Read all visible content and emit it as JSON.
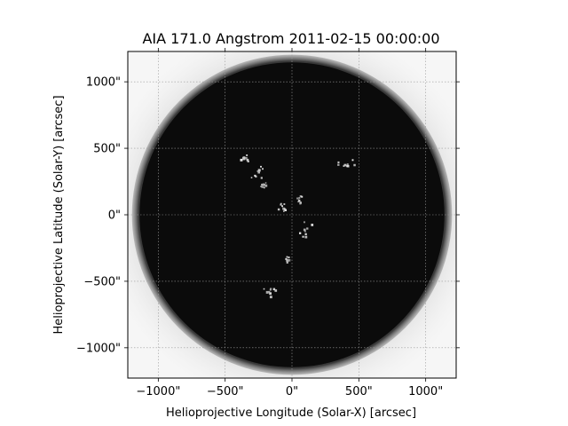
{
  "chart_data": {
    "type": "heatmap",
    "title": "AIA 171.0 Angstrom 2011-02-15 00:00:00",
    "xlabel": "Helioprojective Longitude (Solar-X) [arcsec]",
    "ylabel": "Helioprojective Latitude (Solar-Y) [arcsec]",
    "xlim": [
      -1228,
      1228
    ],
    "ylim": [
      -1228,
      1228
    ],
    "x_ticks": [
      -1000,
      -500,
      0,
      500,
      1000
    ],
    "y_ticks": [
      -1000,
      -500,
      0,
      500,
      1000
    ],
    "x_tick_labels": [
      "−1000\"",
      "−500\"",
      "0\"",
      "500\"",
      "1000\""
    ],
    "y_tick_labels": [
      "−1000\"",
      "−500\"",
      "0\"",
      "500\"",
      "1000\""
    ],
    "grid": true,
    "colormap": "gray_r",
    "solar_disk": {
      "center": [
        0,
        0
      ],
      "radius_arcsec": 1140
    },
    "bright_features": [
      {
        "x": -370,
        "y": 430,
        "r": 60
      },
      {
        "x": -270,
        "y": 330,
        "r": 70
      },
      {
        "x": -230,
        "y": 230,
        "r": 40
      },
      {
        "x": 400,
        "y": 380,
        "r": 70
      },
      {
        "x": -80,
        "y": 70,
        "r": 50
      },
      {
        "x": 90,
        "y": -120,
        "r": 80
      },
      {
        "x": -40,
        "y": -330,
        "r": 30
      },
      {
        "x": -170,
        "y": -560,
        "r": 50
      },
      {
        "x": 60,
        "y": 120,
        "r": 30
      }
    ]
  },
  "colors": {
    "disk": "#0b0b0b",
    "limb_glow": "#2a2a2a",
    "corona": "#e9e9e9",
    "background": "#ffffff",
    "grid": "#9a9a9a",
    "axis": "#000000"
  }
}
